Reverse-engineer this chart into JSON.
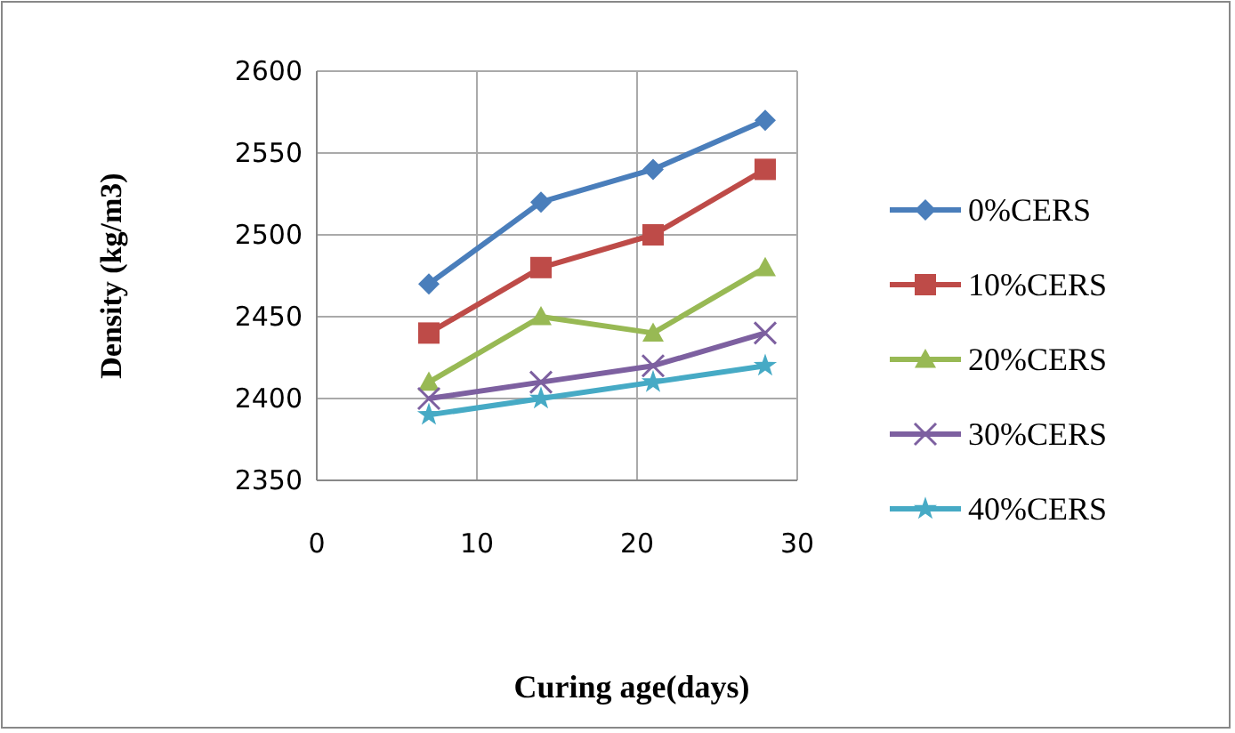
{
  "chart_data": {
    "type": "line",
    "xlabel": "Curing age(days)",
    "ylabel": "Density (kg/m3)",
    "x": [
      7,
      14,
      21,
      28
    ],
    "xlim": [
      0,
      30
    ],
    "xticks": [
      0,
      10,
      20,
      30
    ],
    "ylim": [
      2350,
      2600
    ],
    "yticks": [
      2350,
      2400,
      2450,
      2500,
      2550,
      2600
    ],
    "grid": true,
    "legend": "right",
    "line_style": "solid",
    "series": [
      {
        "name": "0%CERS",
        "color": "#4a7ebb",
        "marker": "diamond",
        "values": [
          2470,
          2520,
          2540,
          2570
        ]
      },
      {
        "name": "10%CERS",
        "color": "#be4b48",
        "marker": "square",
        "values": [
          2440,
          2480,
          2500,
          2540
        ]
      },
      {
        "name": "20%CERS",
        "color": "#98b954",
        "marker": "triangle",
        "values": [
          2410,
          2450,
          2440,
          2480
        ]
      },
      {
        "name": "30%CERS",
        "color": "#7d60a0",
        "marker": "cross",
        "values": [
          2400,
          2410,
          2420,
          2440
        ]
      },
      {
        "name": "40%CERS",
        "color": "#46aac5",
        "marker": "star",
        "values": [
          2390,
          2400,
          2410,
          2420
        ]
      }
    ]
  }
}
